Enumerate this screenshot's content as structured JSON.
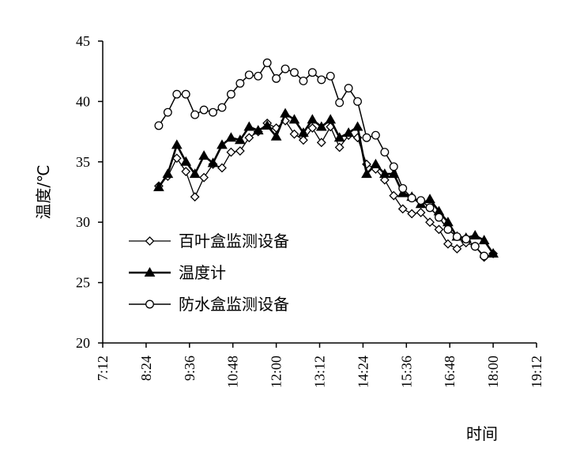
{
  "chart_data": {
    "type": "line",
    "xlabel": "时间",
    "ylabel": "温度/℃",
    "ylim": [
      20,
      45
    ],
    "yticks": [
      "20",
      "25",
      "30",
      "35",
      "40",
      "45"
    ],
    "xlim": [
      "7:12",
      "19:12"
    ],
    "xticks": [
      "7:12",
      "8:24",
      "9:36",
      "10:48",
      "12:00",
      "13:12",
      "14:24",
      "15:36",
      "16:48",
      "18:00",
      "19:12"
    ],
    "grid": false,
    "legend_position": "bottom-left inside plot",
    "series": [
      {
        "name": "百叶盒监测设备",
        "marker": "diamond-open",
        "color": "#000000",
        "x": [
          "8:45",
          "9:00",
          "9:15",
          "9:30",
          "9:45",
          "10:00",
          "10:15",
          "10:30",
          "10:45",
          "11:00",
          "11:15",
          "11:30",
          "11:45",
          "12:00",
          "12:15",
          "12:30",
          "12:45",
          "13:00",
          "13:15",
          "13:30",
          "13:45",
          "14:00",
          "14:15",
          "14:30",
          "14:45",
          "15:00",
          "15:15",
          "15:30",
          "15:45",
          "16:00",
          "16:15",
          "16:30",
          "16:45",
          "17:00",
          "17:15",
          "17:30",
          "17:45",
          "18:00"
        ],
        "y": [
          33.0,
          33.8,
          35.3,
          34.2,
          32.1,
          33.7,
          34.8,
          34.5,
          35.8,
          35.9,
          37.0,
          37.5,
          38.2,
          37.8,
          38.4,
          37.3,
          36.8,
          37.8,
          36.6,
          37.9,
          36.2,
          37.2,
          37.0,
          34.8,
          34.4,
          33.5,
          32.2,
          31.1,
          30.7,
          30.8,
          30.0,
          29.4,
          28.2,
          27.8,
          28.3,
          28.0,
          27.1,
          27.4
        ]
      },
      {
        "name": "温度计",
        "marker": "triangle-filled",
        "color": "#000000",
        "x": [
          "8:45",
          "9:00",
          "9:15",
          "9:30",
          "9:45",
          "10:00",
          "10:15",
          "10:30",
          "10:45",
          "11:00",
          "11:15",
          "11:30",
          "11:45",
          "12:00",
          "12:15",
          "12:30",
          "12:45",
          "13:00",
          "13:15",
          "13:30",
          "13:45",
          "14:00",
          "14:15",
          "14:30",
          "14:45",
          "15:00",
          "15:15",
          "15:30",
          "15:45",
          "16:00",
          "16:15",
          "16:30",
          "16:45",
          "17:00",
          "17:15",
          "17:30",
          "17:45",
          "18:00"
        ],
        "y": [
          32.9,
          34.0,
          36.4,
          35.0,
          34.0,
          35.5,
          34.9,
          36.4,
          37.0,
          36.8,
          37.9,
          37.6,
          38.0,
          37.1,
          39.0,
          38.5,
          37.4,
          38.5,
          37.9,
          38.5,
          37.0,
          37.4,
          37.9,
          34.0,
          34.8,
          34.0,
          34.0,
          32.4,
          32.1,
          31.5,
          31.9,
          30.9,
          30.0,
          28.8,
          28.7,
          28.9,
          28.5,
          27.4
        ]
      },
      {
        "name": "防水盒监测设备",
        "marker": "circle-open",
        "color": "#000000",
        "x": [
          "8:45",
          "9:00",
          "9:15",
          "9:30",
          "9:45",
          "10:00",
          "10:15",
          "10:30",
          "10:45",
          "11:00",
          "11:15",
          "11:30",
          "11:45",
          "12:00",
          "12:15",
          "12:30",
          "12:45",
          "13:00",
          "13:15",
          "13:30",
          "13:45",
          "14:00",
          "14:15",
          "14:30",
          "14:45",
          "15:00",
          "15:15",
          "15:30",
          "15:45",
          "16:00",
          "16:15",
          "16:30",
          "16:45",
          "17:00",
          "17:15",
          "17:30",
          "17:45"
        ],
        "y": [
          38.0,
          39.1,
          40.6,
          40.6,
          38.9,
          39.3,
          39.1,
          39.5,
          40.6,
          41.5,
          42.2,
          42.1,
          43.2,
          41.9,
          42.7,
          42.4,
          41.7,
          42.4,
          41.8,
          42.1,
          39.9,
          41.1,
          40.0,
          37.0,
          37.2,
          35.8,
          34.6,
          32.8,
          32.0,
          31.8,
          31.2,
          30.4,
          29.4,
          28.8,
          28.6,
          28.0,
          27.2
        ]
      }
    ]
  }
}
